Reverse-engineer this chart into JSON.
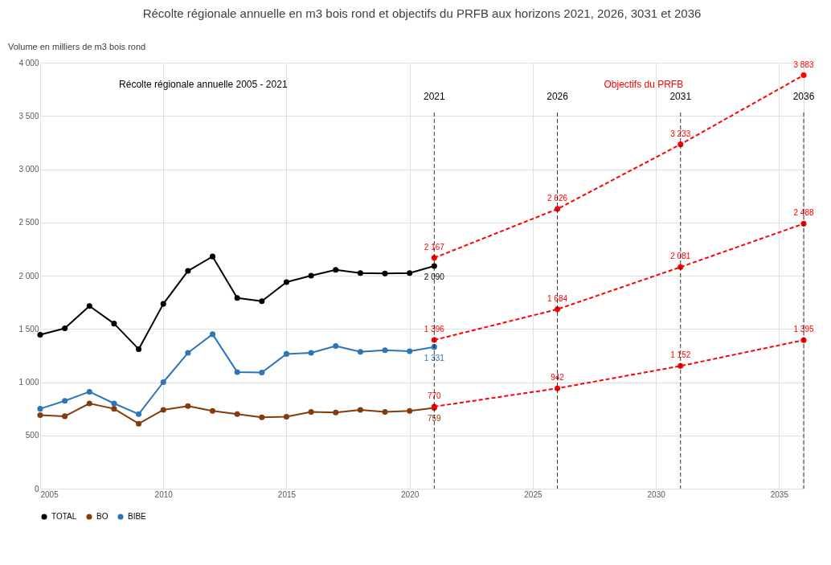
{
  "chart_data": {
    "type": "line",
    "title": "Récolte régionale annuelle en m3 bois rond et objectifs du PRFB aux horizons 2021, 2026, 3031 et 2036",
    "ylabel": "Volume en milliers de m3 bois rond",
    "x": [
      2005,
      2006,
      2007,
      2008,
      2009,
      2010,
      2011,
      2012,
      2013,
      2014,
      2015,
      2016,
      2017,
      2018,
      2019,
      2020,
      2021
    ],
    "series": [
      {
        "name": "TOTAL",
        "color": "#000000",
        "line_style": "solid",
        "values": [
          1445,
          1505,
          1715,
          1550,
          1310,
          1735,
          2045,
          2180,
          1790,
          1760,
          1940,
          2000,
          2055,
          2025,
          2020,
          2025,
          2090
        ],
        "value_labels": [
          null,
          null,
          null,
          null,
          null,
          null,
          null,
          null,
          null,
          null,
          null,
          null,
          null,
          null,
          null,
          null,
          "2 090"
        ]
      },
      {
        "name": "BO",
        "color": "#843c0c",
        "line_style": "solid",
        "values": [
          690,
          680,
          800,
          750,
          610,
          740,
          775,
          730,
          700,
          670,
          675,
          720,
          715,
          740,
          720,
          730,
          759
        ],
        "value_labels": [
          null,
          null,
          null,
          null,
          null,
          null,
          null,
          null,
          null,
          null,
          null,
          null,
          null,
          null,
          null,
          null,
          "759"
        ]
      },
      {
        "name": "BIBE",
        "color": "#2e75b6",
        "line_style": "solid",
        "values": [
          750,
          825,
          910,
          800,
          700,
          1000,
          1275,
          1450,
          1095,
          1090,
          1265,
          1275,
          1340,
          1285,
          1300,
          1290,
          1331
        ],
        "value_labels": [
          null,
          null,
          null,
          null,
          null,
          null,
          null,
          null,
          null,
          null,
          null,
          null,
          null,
          null,
          null,
          null,
          "1 331"
        ]
      },
      {
        "color": "#ff0000",
        "line_style": "dashed",
        "x": [
          2021,
          2026,
          2031,
          2036
        ],
        "values": [
          2167,
          2626,
          3233,
          3883
        ],
        "value_labels": [
          "2 167",
          "2 626",
          "3 233",
          "3 883"
        ]
      },
      {
        "color": "#ff0000",
        "line_style": "dashed",
        "x": [
          2021,
          2026,
          2031,
          2036
        ],
        "values": [
          1396,
          1684,
          2081,
          2488
        ],
        "value_labels": [
          "1 396",
          "1 684",
          "2 081",
          "2 488"
        ]
      },
      {
        "color": "#ff0000",
        "line_style": "dashed",
        "x": [
          2021,
          2026,
          2031,
          2036
        ],
        "values": [
          770,
          942,
          1152,
          1395
        ],
        "value_labels": [
          "770",
          "942",
          "1 152",
          "1 395"
        ]
      }
    ],
    "xlim": [
      2005,
      2036
    ],
    "xticks": [
      2005,
      2010,
      2015,
      2020,
      2025,
      2030,
      2035
    ],
    "ylim": [
      0,
      4000
    ],
    "yticks": [
      0,
      500,
      {
        "value": 1000,
        "label": "1 000"
      },
      {
        "value": 1500,
        "label": "1 500"
      },
      {
        "value": 2000,
        "label": "2 000"
      },
      {
        "value": 2500,
        "label": "2 500"
      },
      {
        "value": 3000,
        "label": "3 000"
      },
      {
        "value": 3500,
        "label": "3 500"
      },
      {
        "value": 4000,
        "label": "4 000"
      }
    ],
    "ref_lines": [
      {
        "axis": "x",
        "value": 2021,
        "label": "2021",
        "color": "#000000",
        "line_style": "dashed"
      },
      {
        "axis": "x",
        "value": 2026,
        "label": "2026",
        "color": "#000000",
        "line_style": "dashed"
      },
      {
        "axis": "x",
        "value": 2031,
        "label": "2031",
        "color": "#000000",
        "line_style": "dashed"
      },
      {
        "axis": "x",
        "value": 2036,
        "label": "2036",
        "color": "#000000",
        "line_style": "dashed"
      }
    ],
    "annotations": [
      "Récolte régionale annuelle 2005 - 2021",
      "Objectifs du PRFB"
    ],
    "grid": true,
    "legend": "bottom",
    "marker": "circle"
  }
}
